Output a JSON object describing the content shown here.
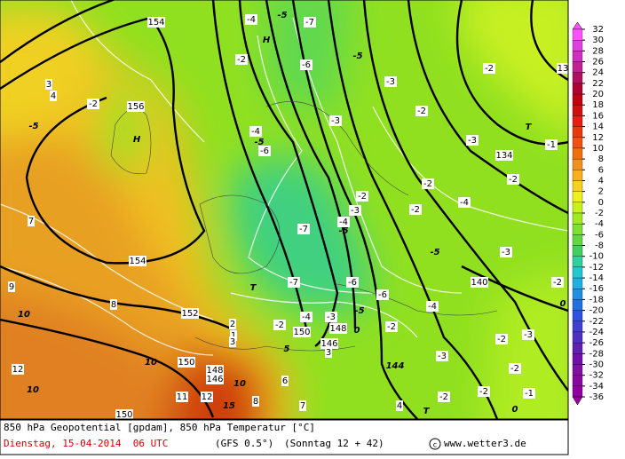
{
  "map": {
    "labels": [
      "154",
      "-4",
      "-5",
      "-7",
      "H",
      "-2",
      "-6",
      "-5",
      "-2",
      "13",
      "-3",
      "3",
      "4",
      "-2",
      "156",
      "-5",
      "H",
      "-4",
      "-5",
      "-6",
      "-3",
      "-2",
      "-3",
      "T",
      "-1",
      "134",
      "-2",
      "-2",
      "-2",
      "-4",
      "-3",
      "-2",
      "-7",
      "-4",
      "-5",
      "7",
      "-5",
      "-3",
      "154",
      "9",
      "T",
      "-7",
      "-6",
      "-6",
      "140",
      "-2",
      "0",
      "-4",
      "8",
      "10",
      "152",
      "2",
      "-4",
      "-3",
      "-5",
      "-2",
      "150",
      "148",
      "0",
      "-2",
      "146",
      "3",
      "5",
      "-2",
      "-3",
      "12",
      "10",
      "150",
      "148",
      "146",
      "10",
      "6",
      "144",
      "-3",
      "-2",
      "10",
      "11",
      "12",
      "15",
      "8",
      "7",
      "-2",
      "-1",
      "-2",
      "4",
      "T",
      "0",
      "150",
      "1",
      "3"
    ]
  },
  "colorbar": {
    "ticks": [
      32,
      30,
      28,
      26,
      24,
      22,
      20,
      18,
      16,
      14,
      12,
      10,
      8,
      6,
      4,
      2,
      0,
      -2,
      -4,
      -6,
      -8,
      -10,
      -12,
      -14,
      -16,
      -18,
      -20,
      -22,
      -24,
      -26,
      -28,
      -30,
      -32,
      -34,
      -36
    ],
    "colors": [
      "#ff50ff",
      "#e040e0",
      "#d030c0",
      "#c02090",
      "#b01060",
      "#b00030",
      "#c00010",
      "#d01010",
      "#e02010",
      "#e83810",
      "#f05010",
      "#f07010",
      "#f09020",
      "#f8b020",
      "#f8d020",
      "#f0f020",
      "#c8f020",
      "#a0e820",
      "#80e030",
      "#60d840",
      "#40d060",
      "#30d0a0",
      "#20c8d0",
      "#20b0e0",
      "#2090e0",
      "#2070e0",
      "#3050e0",
      "#4040d0",
      "#5030c0",
      "#6020b0",
      "#7010a8",
      "#8010a0",
      "#8808a0",
      "#9000a0",
      "#9800a0"
    ]
  },
  "footer": {
    "line1": "850 hPa Geopotential [gpdam], 850 hPa Temperatur [°C]",
    "date": "Dienstag, 15-04-2014  06 UTC",
    "model": "(GFS 0.5°)",
    "run": "(Sonntag 12 + 42)",
    "site": "www.wetter3.de"
  }
}
